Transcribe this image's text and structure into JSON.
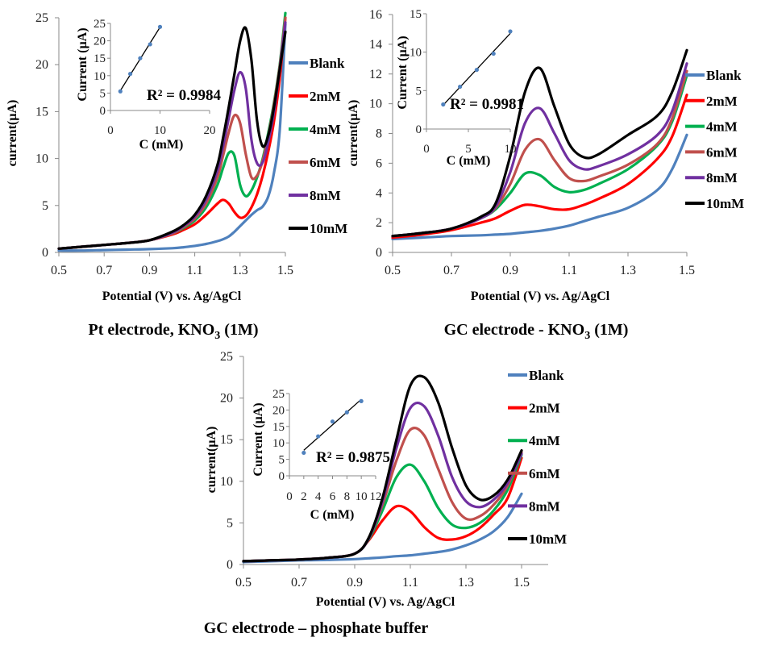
{
  "chart_data": [
    {
      "type": "line",
      "caption": "Pt electrode, KNO",
      "caption_sub": "3",
      "caption_tail": " (1M)",
      "xlabel": "Potential (V) vs. Ag/AgCl",
      "ylabel": "current(µA)",
      "xlim": [
        0.5,
        1.5
      ],
      "ylim": [
        0,
        25
      ],
      "xticks": [
        "0.5",
        "0.7",
        "0.9",
        "1.1",
        "1.3",
        "1.5"
      ],
      "yticks": [
        "0",
        "5",
        "10",
        "15",
        "20",
        "25"
      ],
      "grid": false,
      "legend_position": "right",
      "x": [
        0.5,
        0.6,
        0.7,
        0.8,
        0.9,
        1.0,
        1.05,
        1.1,
        1.15,
        1.2,
        1.225,
        1.25,
        1.275,
        1.3,
        1.325,
        1.35,
        1.375,
        1.4,
        1.425,
        1.45,
        1.475,
        1.5
      ],
      "series": [
        {
          "name": "Blank",
          "color": "#4f81bd",
          "values": [
            0.2,
            0.2,
            0.25,
            0.3,
            0.35,
            0.45,
            0.55,
            0.7,
            0.9,
            1.2,
            1.4,
            1.7,
            2.2,
            2.8,
            3.4,
            4.0,
            4.5,
            4.9,
            6.0,
            8.5,
            13,
            24.3
          ]
        },
        {
          "name": "2mM",
          "color": "#ff0000",
          "values": [
            0.4,
            0.6,
            0.8,
            1.0,
            1.3,
            1.9,
            2.4,
            3.0,
            4.0,
            5.2,
            5.6,
            5.2,
            4.3,
            3.7,
            3.9,
            4.8,
            6.2,
            8.2,
            10.8,
            14,
            18.5,
            25
          ]
        },
        {
          "name": "4mM",
          "color": "#00b050",
          "values": [
            0.4,
            0.6,
            0.8,
            1.0,
            1.3,
            2.0,
            2.6,
            3.4,
            4.8,
            7.2,
            9.0,
            10.6,
            10.3,
            7.2,
            6.0,
            6.6,
            8.0,
            10,
            12.8,
            16,
            20,
            25.5
          ]
        },
        {
          "name": "6mM",
          "color": "#c0504d",
          "values": [
            0.4,
            0.6,
            0.8,
            1.0,
            1.3,
            2.0,
            2.7,
            3.6,
            5.2,
            8.0,
            10.3,
            12.8,
            14.6,
            13.8,
            10.5,
            8.0,
            8.2,
            9.8,
            12.5,
            15.8,
            19.8,
            25
          ]
        },
        {
          "name": "8mM",
          "color": "#7030a0",
          "values": [
            0.4,
            0.6,
            0.8,
            1.0,
            1.3,
            2.1,
            2.8,
            3.8,
            5.6,
            8.7,
            11.3,
            14.3,
            17.3,
            19.2,
            17.5,
            12,
            9.5,
            9.6,
            11.8,
            15,
            19.5,
            24.5
          ]
        },
        {
          "name": "10mM",
          "color": "#000000",
          "values": [
            0.4,
            0.6,
            0.8,
            1.0,
            1.3,
            2.2,
            2.9,
            4.0,
            6.0,
            9.3,
            12.2,
            15.5,
            19,
            22.5,
            23.9,
            20.5,
            14,
            11.3,
            12.5,
            15.5,
            19.5,
            23.5
          ]
        }
      ],
      "inset": {
        "type": "scatter",
        "xlabel": "C  (mM)",
        "ylabel": "Current (µA)",
        "xlim": [
          0,
          20
        ],
        "ylim": [
          0,
          25
        ],
        "xticks": [
          "0",
          "10",
          "20"
        ],
        "yticks": [
          "0",
          "5",
          "10",
          "15",
          "20",
          "25"
        ],
        "x": [
          2,
          4,
          6,
          8,
          10
        ],
        "y": [
          5.5,
          10.5,
          15,
          19,
          24
        ],
        "trendline": "linear",
        "r2_label": "R² = 0.9984"
      }
    },
    {
      "type": "line",
      "caption": "GC electrode - KNO",
      "caption_sub": "3",
      "caption_tail": " (1M)",
      "xlabel": "Potential (V) vs. Ag/AgCl",
      "ylabel": "current(µA)",
      "xlim": [
        0.5,
        1.5
      ],
      "ylim": [
        0,
        16
      ],
      "xticks": [
        "0.5",
        "0.7",
        "0.9",
        "1.1",
        "1.3",
        "1.5"
      ],
      "yticks": [
        "0",
        "2",
        "4",
        "6",
        "8",
        "10",
        "12",
        "14",
        "16"
      ],
      "grid": false,
      "legend_position": "right",
      "x": [
        0.5,
        0.6,
        0.7,
        0.8,
        0.85,
        0.9,
        0.95,
        1.0,
        1.05,
        1.1,
        1.15,
        1.2,
        1.3,
        1.4,
        1.45,
        1.5
      ],
      "series": [
        {
          "name": "Blank",
          "color": "#4f81bd",
          "values": [
            0.9,
            1.0,
            1.1,
            1.15,
            1.2,
            1.25,
            1.35,
            1.45,
            1.6,
            1.8,
            2.1,
            2.4,
            3.0,
            4.2,
            5.6,
            7.9
          ]
        },
        {
          "name": "2mM",
          "color": "#ff0000",
          "values": [
            1.0,
            1.2,
            1.5,
            2.0,
            2.3,
            2.8,
            3.2,
            3.1,
            2.9,
            2.9,
            3.2,
            3.6,
            4.6,
            6.3,
            7.8,
            10.6
          ]
        },
        {
          "name": "4mM",
          "color": "#00b050",
          "values": [
            1.1,
            1.3,
            1.6,
            2.3,
            2.9,
            4.0,
            5.3,
            5.2,
            4.4,
            4.05,
            4.2,
            4.6,
            5.6,
            7.2,
            8.8,
            11.9
          ]
        },
        {
          "name": "6mM",
          "color": "#c0504d",
          "values": [
            1.1,
            1.3,
            1.6,
            2.3,
            3.0,
            4.6,
            6.9,
            7.6,
            6.2,
            5.0,
            4.8,
            5.1,
            5.9,
            7.3,
            9.0,
            12.2
          ]
        },
        {
          "name": "8mM",
          "color": "#7030a0",
          "values": [
            1.1,
            1.3,
            1.6,
            2.3,
            3.1,
            5.4,
            8.7,
            9.7,
            8.0,
            6.2,
            5.6,
            5.8,
            6.6,
            7.9,
            9.5,
            12.7
          ]
        },
        {
          "name": "10mM",
          "color": "#000000",
          "values": [
            1.1,
            1.3,
            1.6,
            2.4,
            3.3,
            6.5,
            10.8,
            12.4,
            9.8,
            7.3,
            6.4,
            6.6,
            7.9,
            9.2,
            10.8,
            13.6
          ]
        }
      ],
      "inset": {
        "type": "scatter",
        "xlabel": "C  (mM)",
        "ylabel": "Current (µA)",
        "xlim": [
          0,
          10
        ],
        "ylim": [
          0,
          15
        ],
        "xticks": [
          "0",
          "5",
          "10"
        ],
        "yticks": [
          "0",
          "5",
          "10",
          "15"
        ],
        "x": [
          2,
          4,
          6,
          8,
          10
        ],
        "y": [
          3.2,
          5.5,
          7.7,
          9.8,
          12.7
        ],
        "trendline": "linear",
        "r2_label": "R² = 0.9981"
      }
    },
    {
      "type": "line",
      "caption": "GC electrode – phosphate buffer",
      "caption_sub": "",
      "caption_tail": "",
      "xlabel": "Potential (V) vs. Ag/AgCl",
      "ylabel": "current(µA)",
      "xlim": [
        0.5,
        1.5
      ],
      "ylim": [
        0,
        25
      ],
      "xticks": [
        "0.5",
        "0.7",
        "0.9",
        "1.1",
        "1.3",
        "1.5"
      ],
      "yticks": [
        "0",
        "5",
        "10",
        "15",
        "20",
        "25"
      ],
      "grid": false,
      "legend_position": "right",
      "x": [
        0.5,
        0.6,
        0.7,
        0.8,
        0.9,
        0.95,
        1.0,
        1.05,
        1.1,
        1.15,
        1.2,
        1.25,
        1.3,
        1.35,
        1.4,
        1.45,
        1.5
      ],
      "series": [
        {
          "name": "Blank",
          "color": "#4f81bd",
          "values": [
            0.3,
            0.4,
            0.5,
            0.55,
            0.65,
            0.75,
            0.85,
            1.0,
            1.1,
            1.3,
            1.5,
            1.8,
            2.3,
            3.0,
            4.0,
            5.7,
            8.5
          ]
        },
        {
          "name": "2mM",
          "color": "#ff0000",
          "values": [
            0.4,
            0.5,
            0.6,
            0.8,
            1.3,
            2.9,
            5.3,
            7.0,
            6.4,
            4.5,
            3.2,
            3.0,
            3.4,
            4.4,
            6.0,
            8.0,
            12.8
          ]
        },
        {
          "name": "4mM",
          "color": "#00b050",
          "values": [
            0.4,
            0.5,
            0.6,
            0.8,
            1.3,
            3.0,
            6.5,
            10.5,
            12.0,
            10.0,
            6.8,
            4.8,
            4.4,
            5.0,
            6.5,
            9.0,
            13.2
          ]
        },
        {
          "name": "6mM",
          "color": "#c0504d",
          "values": [
            0.4,
            0.5,
            0.6,
            0.8,
            1.3,
            3.1,
            7.2,
            12.5,
            16.2,
            15.5,
            11.5,
            7.5,
            5.5,
            5.8,
            7.2,
            9.5,
            13.5
          ]
        },
        {
          "name": "8mM",
          "color": "#7030a0",
          "values": [
            0.4,
            0.5,
            0.6,
            0.8,
            1.3,
            3.1,
            7.6,
            14,
            18.8,
            19.0,
            15.5,
            10.5,
            7.6,
            6.9,
            7.8,
            9.8,
            13.3
          ]
        },
        {
          "name": "10mM",
          "color": "#000000",
          "values": [
            0.4,
            0.5,
            0.6,
            0.8,
            1.3,
            3.2,
            8,
            15,
            21.5,
            22.5,
            19.5,
            14,
            9.5,
            7.8,
            8.3,
            10.2,
            13.7
          ]
        }
      ],
      "inset": {
        "type": "scatter",
        "xlabel": "C  (mM)",
        "ylabel": "Current (µA)",
        "xlim": [
          0,
          12
        ],
        "ylim": [
          0,
          25
        ],
        "xticks": [
          "0",
          "2",
          "4",
          "6",
          "8",
          "10",
          "12"
        ],
        "yticks": [
          "0",
          "5",
          "10",
          "15",
          "20",
          "25"
        ],
        "x": [
          2,
          4,
          6,
          8,
          10
        ],
        "y": [
          7,
          12,
          16.5,
          19.3,
          22.7
        ],
        "trendline": "linear",
        "r2_label": "R² = 0.9875"
      }
    }
  ]
}
